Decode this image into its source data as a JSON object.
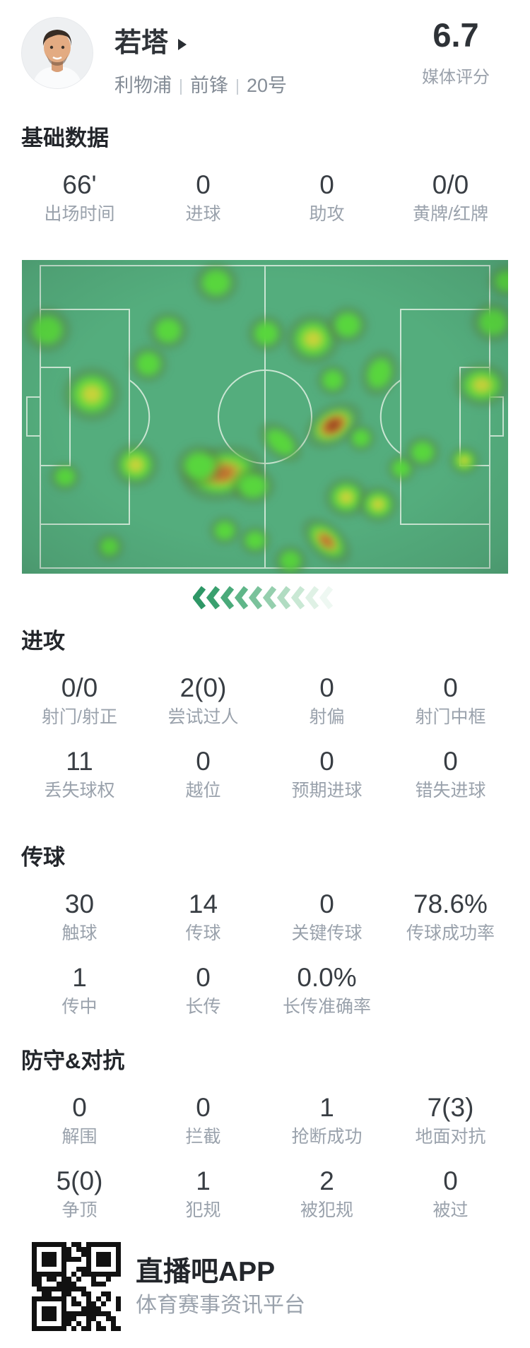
{
  "header": {
    "player_name": "若塔",
    "team": "利物浦",
    "position": "前锋",
    "number": "20号",
    "separator": "|",
    "rating": "6.7",
    "rating_label": "媒体评分"
  },
  "sections": {
    "basic": {
      "title": "基础数据",
      "rows": [
        [
          {
            "value": "66'",
            "label": "出场时间"
          },
          {
            "value": "0",
            "label": "进球"
          },
          {
            "value": "0",
            "label": "助攻"
          },
          {
            "value": "0/0",
            "label": "黄牌/红牌"
          }
        ]
      ]
    },
    "attack": {
      "title": "进攻",
      "rows": [
        [
          {
            "value": "0/0",
            "label": "射门/射正"
          },
          {
            "value": "2(0)",
            "label": "尝试过人"
          },
          {
            "value": "0",
            "label": "射偏"
          },
          {
            "value": "0",
            "label": "射门中框"
          }
        ],
        [
          {
            "value": "11",
            "label": "丢失球权"
          },
          {
            "value": "0",
            "label": "越位"
          },
          {
            "value": "0",
            "label": "预期进球"
          },
          {
            "value": "0",
            "label": "错失进球"
          }
        ]
      ]
    },
    "passing": {
      "title": "传球",
      "rows": [
        [
          {
            "value": "30",
            "label": "触球"
          },
          {
            "value": "14",
            "label": "传球"
          },
          {
            "value": "0",
            "label": "关键传球"
          },
          {
            "value": "78.6%",
            "label": "传球成功率"
          }
        ],
        [
          {
            "value": "1",
            "label": "传中"
          },
          {
            "value": "0",
            "label": "长传"
          },
          {
            "value": "0.0%",
            "label": "长传准确率"
          }
        ]
      ]
    },
    "defense": {
      "title": "防守&对抗",
      "rows": [
        [
          {
            "value": "0",
            "label": "解围"
          },
          {
            "value": "0",
            "label": "拦截"
          },
          {
            "value": "1",
            "label": "抢断成功"
          },
          {
            "value": "7(3)",
            "label": "地面对抗"
          }
        ],
        [
          {
            "value": "5(0)",
            "label": "争顶"
          },
          {
            "value": "1",
            "label": "犯规"
          },
          {
            "value": "2",
            "label": "被犯规"
          },
          {
            "value": "0",
            "label": "被过"
          }
        ]
      ]
    }
  },
  "heatmap": {
    "pitch_color": "#54ad7d",
    "line_color": "#dff0e3",
    "heat_colors": {
      "green": "#58d63d",
      "yellow": "#c9d33a",
      "orange": "#c17030",
      "red": "#96431f"
    },
    "direction": "left",
    "blobs": [
      [
        275,
        32,
        24,
        22,
        "g",
        0
      ],
      [
        36,
        99,
        26,
        24,
        "g",
        0
      ],
      [
        207,
        100,
        22,
        21,
        "g",
        0
      ],
      [
        179,
        147,
        21,
        20,
        "g",
        0
      ],
      [
        99,
        190,
        32,
        30,
        "y",
        0
      ],
      [
        346,
        104,
        21,
        20,
        "g",
        0
      ],
      [
        412,
        112,
        30,
        28,
        "y",
        0
      ],
      [
        461,
        92,
        22,
        21,
        "g",
        0
      ],
      [
        667,
        88,
        24,
        22,
        "g",
        0
      ],
      [
        686,
        30,
        20,
        18,
        "g",
        0
      ],
      [
        440,
        170,
        18,
        17,
        "g",
        0
      ],
      [
        506,
        160,
        20,
        26,
        "g",
        20
      ],
      [
        651,
        177,
        30,
        24,
        "y",
        0
      ],
      [
        161,
        290,
        26,
        24,
        "y",
        0
      ],
      [
        61,
        307,
        17,
        16,
        "g",
        0
      ],
      [
        284,
        302,
        46,
        30,
        "o",
        -12
      ],
      [
        327,
        320,
        24,
        20,
        "g",
        0
      ],
      [
        251,
        291,
        26,
        23,
        "g",
        0
      ],
      [
        366,
        258,
        28,
        17,
        "g",
        40
      ],
      [
        441,
        234,
        34,
        22,
        "r",
        -32
      ],
      [
        480,
        252,
        16,
        15,
        "g",
        0
      ],
      [
        459,
        336,
        24,
        22,
        "y",
        0
      ],
      [
        504,
        346,
        22,
        20,
        "y",
        0
      ],
      [
        537,
        295,
        16,
        15,
        "g",
        0
      ],
      [
        567,
        272,
        19,
        18,
        "g",
        0
      ],
      [
        626,
        284,
        17,
        16,
        "y",
        0
      ],
      [
        287,
        383,
        17,
        16,
        "g",
        0
      ],
      [
        330,
        397,
        17,
        16,
        "g",
        0
      ],
      [
        380,
        426,
        18,
        17,
        "g",
        0
      ],
      [
        431,
        398,
        32,
        19,
        "o",
        42
      ],
      [
        124,
        406,
        16,
        15,
        "g",
        0
      ]
    ],
    "arrow_colors": [
      "#2e9766",
      "#3aa06f",
      "#4aaa7a",
      "#60b689",
      "#7ac29b",
      "#95cfae",
      "#b1dcc2",
      "#c9e8d4",
      "#dff1e5",
      "#eef8f2"
    ]
  },
  "footer": {
    "app_name": "直播吧APP",
    "app_slogan": "体育赛事资讯平台"
  }
}
